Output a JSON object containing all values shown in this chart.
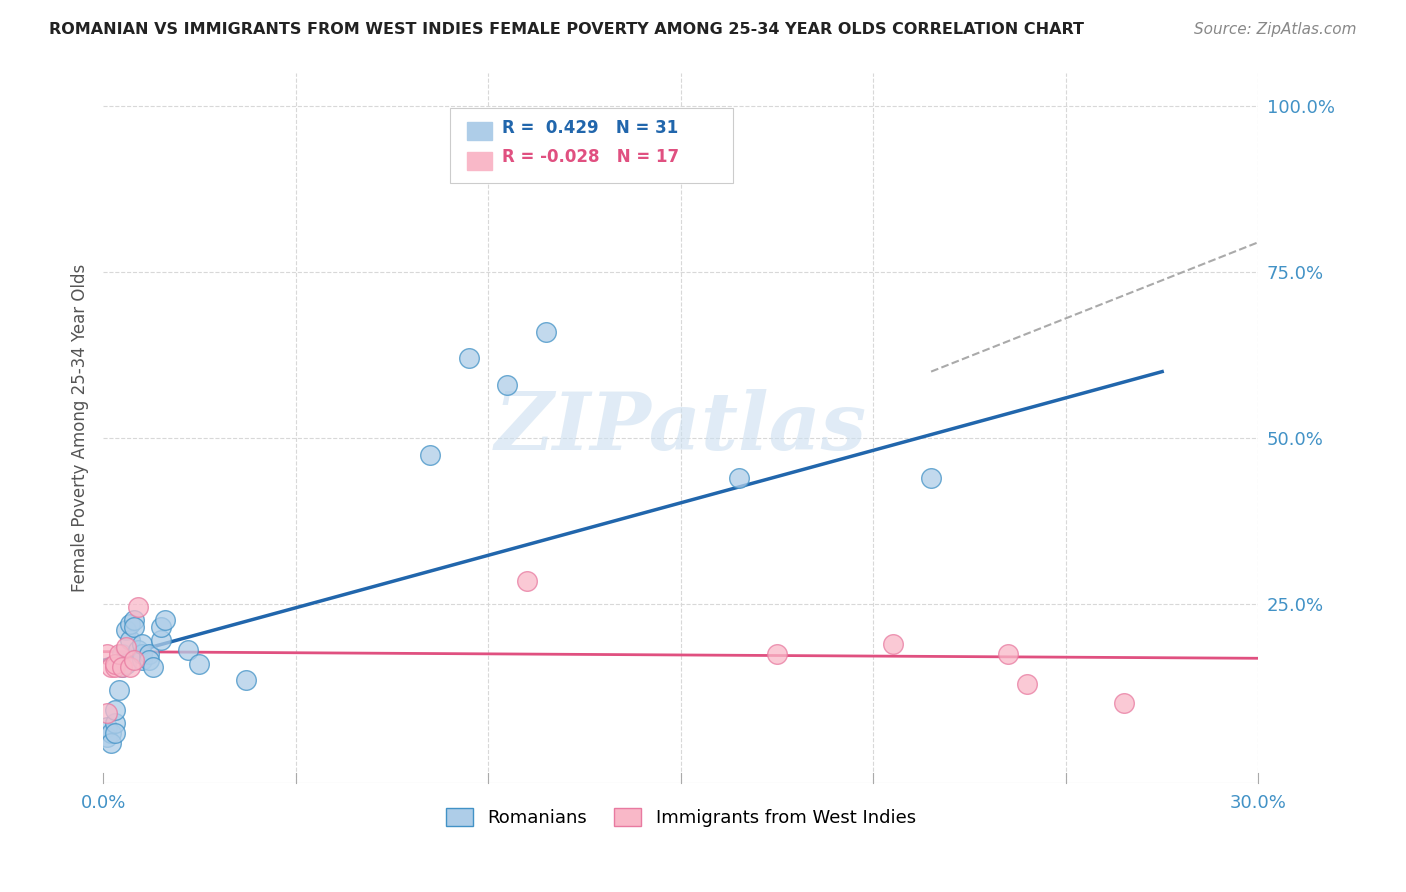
{
  "title": "ROMANIAN VS IMMIGRANTS FROM WEST INDIES FEMALE POVERTY AMONG 25-34 YEAR OLDS CORRELATION CHART",
  "source": "Source: ZipAtlas.com",
  "ylabel": "Female Poverty Among 25-34 Year Olds",
  "xlim": [
    0.0,
    0.3
  ],
  "ylim": [
    -0.02,
    1.05
  ],
  "xticks": [
    0.0,
    0.05,
    0.1,
    0.15,
    0.2,
    0.25,
    0.3
  ],
  "xticklabels": [
    "0.0%",
    "",
    "",
    "",
    "",
    "",
    "30.0%"
  ],
  "yticks_right": [
    0.0,
    0.25,
    0.5,
    0.75,
    1.0
  ],
  "yticklabels_right": [
    "",
    "25.0%",
    "50.0%",
    "75.0%",
    "100.0%"
  ],
  "legend_color1": "#aecde8",
  "legend_color2": "#f9b8c8",
  "blue_edge_color": "#4292c6",
  "pink_edge_color": "#e87aa0",
  "blue_line_color": "#2166ac",
  "pink_line_color": "#e05080",
  "blue_scatter": [
    [
      0.001,
      0.05
    ],
    [
      0.001,
      0.065
    ],
    [
      0.002,
      0.055
    ],
    [
      0.002,
      0.04
    ],
    [
      0.003,
      0.07
    ],
    [
      0.003,
      0.055
    ],
    [
      0.003,
      0.09
    ],
    [
      0.004,
      0.12
    ],
    [
      0.005,
      0.175
    ],
    [
      0.005,
      0.155
    ],
    [
      0.006,
      0.21
    ],
    [
      0.006,
      0.16
    ],
    [
      0.007,
      0.195
    ],
    [
      0.007,
      0.22
    ],
    [
      0.008,
      0.225
    ],
    [
      0.008,
      0.215
    ],
    [
      0.009,
      0.18
    ],
    [
      0.01,
      0.165
    ],
    [
      0.01,
      0.175
    ],
    [
      0.01,
      0.19
    ],
    [
      0.012,
      0.175
    ],
    [
      0.012,
      0.165
    ],
    [
      0.013,
      0.155
    ],
    [
      0.015,
      0.195
    ],
    [
      0.015,
      0.215
    ],
    [
      0.016,
      0.225
    ],
    [
      0.022,
      0.18
    ],
    [
      0.025,
      0.16
    ],
    [
      0.037,
      0.135
    ],
    [
      0.085,
      0.475
    ],
    [
      0.095,
      0.62
    ],
    [
      0.105,
      0.58
    ],
    [
      0.115,
      0.66
    ],
    [
      0.165,
      0.44
    ],
    [
      0.215,
      0.44
    ]
  ],
  "pink_scatter": [
    [
      0.001,
      0.085
    ],
    [
      0.001,
      0.175
    ],
    [
      0.002,
      0.155
    ],
    [
      0.003,
      0.155
    ],
    [
      0.003,
      0.16
    ],
    [
      0.004,
      0.175
    ],
    [
      0.005,
      0.155
    ],
    [
      0.006,
      0.185
    ],
    [
      0.007,
      0.155
    ],
    [
      0.008,
      0.165
    ],
    [
      0.009,
      0.245
    ],
    [
      0.11,
      0.285
    ],
    [
      0.175,
      0.175
    ],
    [
      0.205,
      0.19
    ],
    [
      0.235,
      0.175
    ],
    [
      0.24,
      0.13
    ],
    [
      0.265,
      0.1
    ]
  ],
  "blue_line_x": [
    0.0,
    0.275
  ],
  "blue_line_y": [
    0.165,
    0.6
  ],
  "pink_line_x": [
    0.0,
    0.3
  ],
  "pink_line_y": [
    0.178,
    0.168
  ],
  "dashed_line_x": [
    0.215,
    0.3
  ],
  "dashed_line_y": [
    0.6,
    0.795
  ],
  "grid_color": "#d8d8d8",
  "background_color": "#ffffff",
  "title_color": "#222222",
  "right_tick_color": "#4292c6",
  "bottom_tick_color": "#4292c6",
  "watermark_text": "ZIPatlas",
  "watermark_color": "#ccdff0"
}
